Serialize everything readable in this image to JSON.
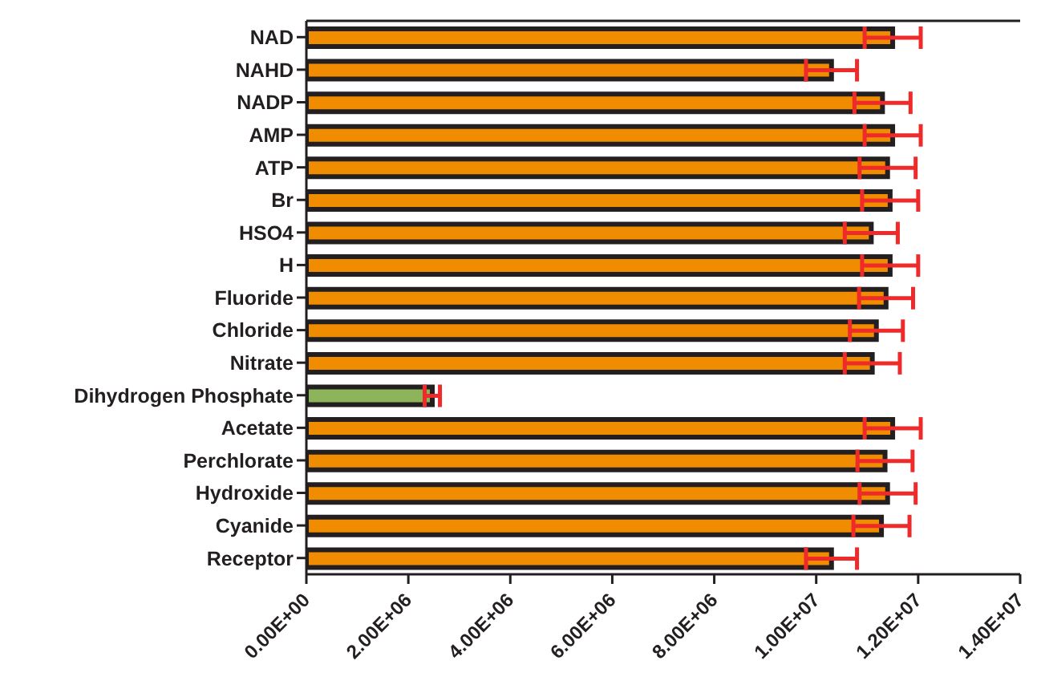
{
  "chart_data": {
    "type": "bar",
    "orientation": "horizontal",
    "categories": [
      "NAD",
      "NAHD",
      "NADP",
      "AMP",
      "ATP",
      "Br",
      "HSO4",
      "H",
      "Fluoride",
      "Chloride",
      "Nitrate",
      "Dihydrogen Phosphate",
      "Acetate",
      "Perchlorate",
      "Hydroxide",
      "Cyanide",
      "Receptor"
    ],
    "values": [
      11500000,
      10300000,
      11300000,
      11500000,
      11400000,
      11450000,
      11080000,
      11450000,
      11370000,
      11180000,
      11100000,
      2470000,
      11500000,
      11350000,
      11400000,
      11280000,
      10300000
    ],
    "errors": [
      550000,
      500000,
      550000,
      550000,
      550000,
      550000,
      520000,
      550000,
      530000,
      520000,
      540000,
      150000,
      550000,
      540000,
      550000,
      550000,
      500000
    ],
    "colors": [
      "#f08c00",
      "#f08c00",
      "#f08c00",
      "#f08c00",
      "#f08c00",
      "#f08c00",
      "#f08c00",
      "#f08c00",
      "#f08c00",
      "#f08c00",
      "#f08c00",
      "#8db45a",
      "#f08c00",
      "#f08c00",
      "#f08c00",
      "#f08c00",
      "#f08c00"
    ],
    "xlim": [
      0,
      14000000
    ],
    "xticks": [
      {
        "value": 0,
        "label": "0.00E+00"
      },
      {
        "value": 2000000,
        "label": "2.00E+06"
      },
      {
        "value": 4000000,
        "label": "4.00E+06"
      },
      {
        "value": 6000000,
        "label": "6.00E+06"
      },
      {
        "value": 8000000,
        "label": "8.00E+06"
      },
      {
        "value": 10000000,
        "label": "1.00E+07"
      },
      {
        "value": 12000000,
        "label": "1.20E+07"
      },
      {
        "value": 14000000,
        "label": "1.40E+07"
      }
    ],
    "grid": false,
    "legend": false
  }
}
